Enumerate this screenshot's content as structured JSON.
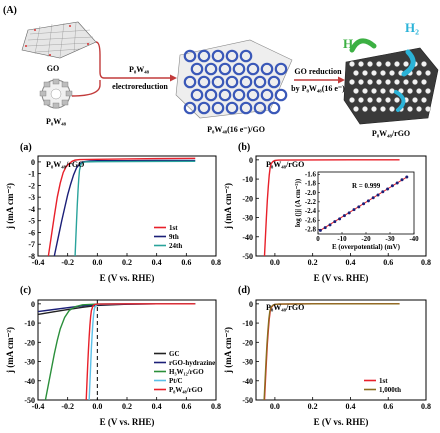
{
  "figure": {
    "label_A": "(A)",
    "scheme": {
      "go": "GO",
      "p8w48_reactant": "P₈W₄₈",
      "arrow1_top": "P₈W₄₈",
      "arrow1_bottom": "electroreduction",
      "intermediate": "P₈W₄₈(16 e⁻)/GO",
      "arrow2_top": "GO reduction",
      "arrow2_bottom": "by P₈W₄₈(16 e⁻)",
      "product": "P₈W₄₈/rGO",
      "h_label": "H",
      "h2_label": "H₂",
      "colors": {
        "go_sheet": "#888888",
        "pom": "#3a58b8",
        "arrow": "#c23b3b",
        "h": "#3cb043",
        "h2": "#2bb3d8"
      }
    }
  },
  "chart_data": [
    {
      "panel": "(a)",
      "type": "line",
      "inset_label": "P₈W₄₈/rGO",
      "xlabel": "E (V vs. RHE)",
      "ylabel": "j (mA cm⁻²)",
      "xlim": [
        -0.4,
        0.8
      ],
      "ylim": [
        -8,
        0.5
      ],
      "xticks": [
        -0.4,
        -0.2,
        0.0,
        0.2,
        0.4,
        0.6,
        0.8
      ],
      "yticks": [
        0,
        -1,
        -2,
        -3,
        -4,
        -5,
        -6,
        -7,
        -8
      ],
      "legend_position": "bottom-right",
      "series": [
        {
          "name": "1st",
          "color": "#e8202a",
          "x": [
            -0.33,
            -0.31,
            -0.29,
            -0.27,
            -0.25,
            -0.23,
            -0.21,
            -0.19,
            -0.17,
            -0.15,
            -0.12,
            0.0,
            0.2,
            0.4,
            0.66
          ],
          "y": [
            -8,
            -6.3,
            -4.6,
            -3.0,
            -1.8,
            -0.9,
            -0.4,
            -0.15,
            0.05,
            0.15,
            0.2,
            0.22,
            0.25,
            0.28,
            0.3
          ]
        },
        {
          "name": "9th",
          "color": "#1b1f78",
          "x": [
            -0.29,
            -0.26,
            -0.24,
            -0.22,
            -0.2,
            -0.18,
            -0.16,
            -0.14,
            -0.12,
            -0.1,
            -0.05,
            0.0,
            0.2,
            0.4,
            0.66
          ],
          "y": [
            -8,
            -6.2,
            -5.0,
            -3.9,
            -2.8,
            -1.9,
            -1.1,
            -0.5,
            -0.2,
            0.0,
            0.08,
            0.1,
            0.1,
            0.12,
            0.12
          ]
        },
        {
          "name": "24th",
          "color": "#2aa39c",
          "x": [
            -0.15,
            -0.145,
            -0.14,
            -0.135,
            -0.13,
            -0.125,
            -0.12,
            -0.11,
            -0.1,
            -0.08,
            0.0,
            0.2,
            0.4,
            0.66
          ],
          "y": [
            -8,
            -6.5,
            -5.0,
            -3.6,
            -2.4,
            -1.4,
            -0.7,
            -0.2,
            -0.05,
            0.0,
            0.02,
            0.03,
            0.04,
            0.05
          ]
        }
      ]
    },
    {
      "panel": "(b)",
      "type": "line",
      "inset_label": "P₈W₄₈/rGO",
      "xlabel": "E (V vs. RHE)",
      "ylabel": "j (mA cm⁻²)",
      "xlim": [
        -0.1,
        0.8
      ],
      "ylim": [
        -50,
        2
      ],
      "xticks": [
        0.0,
        0.2,
        0.4,
        0.6,
        0.8
      ],
      "yticks": [
        0,
        -10,
        -20,
        -30,
        -40,
        -50
      ],
      "series": [
        {
          "name": "P₈W₄₈/rGO",
          "color": "#e8202a",
          "x": [
            -0.055,
            -0.05,
            -0.045,
            -0.04,
            -0.035,
            -0.03,
            -0.025,
            -0.02,
            -0.01,
            0.0,
            0.02,
            0.2,
            0.4,
            0.66
          ],
          "y": [
            -50,
            -40,
            -30,
            -21,
            -14,
            -8,
            -4,
            -2,
            -0.8,
            -0.3,
            -0.1,
            -0.05,
            0,
            0
          ]
        }
      ],
      "inset": {
        "type": "scatter",
        "annotation": "R = 0.999",
        "xlabel": "E (overpotential) (mV)",
        "ylabel": "log (|j| (A cm⁻²))",
        "xlim": [
          0,
          -40
        ],
        "ylim": [
          -2.9,
          -1.55
        ],
        "xticks": [
          0,
          -10,
          -20,
          -30,
          -40
        ],
        "yticks": [
          -1.6,
          -1.8,
          -2.0,
          -2.2,
          -2.4,
          -2.6,
          -2.8
        ],
        "x": [
          -1,
          -3,
          -5,
          -7,
          -9,
          -11,
          -13,
          -15,
          -17,
          -19,
          -21,
          -23,
          -25,
          -27,
          -29,
          -31,
          -33,
          -35,
          -37
        ],
        "y": [
          -2.82,
          -2.76,
          -2.7,
          -2.63,
          -2.57,
          -2.5,
          -2.44,
          -2.37,
          -2.31,
          -2.24,
          -2.18,
          -2.11,
          -2.05,
          -1.98,
          -1.92,
          -1.85,
          -1.79,
          -1.72,
          -1.66
        ],
        "marker_color": "#1b1f78",
        "fit_color": "#e8202a"
      }
    },
    {
      "panel": "(c)",
      "type": "line",
      "xlabel": "E (V vs. RHE)",
      "ylabel": "j (mA cm⁻²)",
      "xlim": [
        -0.4,
        0.8
      ],
      "ylim": [
        -50,
        2
      ],
      "xticks": [
        -0.4,
        -0.2,
        0.0,
        0.2,
        0.4,
        0.6,
        0.8
      ],
      "yticks": [
        0,
        -10,
        -20,
        -30,
        -40,
        -50
      ],
      "vline_x": 0.0,
      "legend_position": "bottom-right",
      "series": [
        {
          "name": "GC",
          "color": "#222222",
          "x": [
            -0.4,
            -0.3,
            -0.2,
            -0.1,
            0.0,
            0.2,
            0.4,
            0.66
          ],
          "y": [
            -5.5,
            -4.2,
            -3.0,
            -1.8,
            -0.8,
            -0.2,
            0,
            0
          ]
        },
        {
          "name": "rGO-hydrazine",
          "color": "#1b1f78",
          "x": [
            -0.4,
            -0.3,
            -0.2,
            -0.1,
            0.0,
            0.2,
            0.4,
            0.66
          ],
          "y": [
            -4.0,
            -3.0,
            -2.0,
            -1.0,
            -0.4,
            -0.1,
            0,
            0
          ]
        },
        {
          "name": "H₃W₁₂/rGO",
          "color": "#2a8f3a",
          "x": [
            -0.35,
            -0.33,
            -0.31,
            -0.29,
            -0.27,
            -0.25,
            -0.22,
            -0.19,
            -0.15,
            -0.1,
            0.0,
            0.2,
            0.4,
            0.66
          ],
          "y": [
            -50,
            -42,
            -34,
            -26,
            -19,
            -13,
            -7,
            -3.5,
            -1.5,
            -0.5,
            -0.1,
            0,
            0,
            0
          ]
        },
        {
          "name": "Pt/C",
          "color": "#5bc0e8",
          "x": [
            -0.055,
            -0.05,
            -0.045,
            -0.04,
            -0.035,
            -0.03,
            -0.025,
            -0.02,
            -0.01,
            0.0,
            0.02,
            0.2,
            0.4,
            0.66
          ],
          "y": [
            -50,
            -41,
            -32,
            -23,
            -16,
            -10,
            -5.5,
            -2.5,
            -0.8,
            -0.3,
            -0.1,
            0,
            0,
            0
          ]
        },
        {
          "name": "P₈W₄₈/rGO",
          "color": "#e8202a",
          "x": [
            -0.075,
            -0.07,
            -0.065,
            -0.06,
            -0.055,
            -0.05,
            -0.045,
            -0.04,
            -0.03,
            -0.02,
            0.0,
            0.2,
            0.4,
            0.66
          ],
          "y": [
            -50,
            -41,
            -32,
            -24,
            -17,
            -11,
            -6.5,
            -3.5,
            -1.2,
            -0.4,
            -0.1,
            0,
            0,
            0
          ]
        }
      ]
    },
    {
      "panel": "(d)",
      "type": "line",
      "inset_label": "P₈W₄₈/rGO",
      "xlabel": "E (V vs. RHE)",
      "ylabel": "j (mA cm⁻²)",
      "xlim": [
        -0.1,
        0.8
      ],
      "ylim": [
        -50,
        2
      ],
      "xticks": [
        0.0,
        0.2,
        0.4,
        0.6,
        0.8
      ],
      "yticks": [
        0,
        -10,
        -20,
        -30,
        -40,
        -50
      ],
      "legend_position": "bottom-right",
      "series": [
        {
          "name": "1st",
          "color": "#e8202a",
          "x": [
            -0.055,
            -0.05,
            -0.045,
            -0.04,
            -0.035,
            -0.03,
            -0.025,
            -0.02,
            -0.01,
            0.0,
            0.02,
            0.2,
            0.4,
            0.66
          ],
          "y": [
            -50,
            -40,
            -30,
            -21,
            -14,
            -8,
            -4,
            -2,
            -0.8,
            -0.3,
            -0.1,
            0,
            0,
            0
          ]
        },
        {
          "name": "1,000th",
          "color": "#8a6d1f",
          "x": [
            -0.057,
            -0.052,
            -0.047,
            -0.042,
            -0.037,
            -0.032,
            -0.027,
            -0.022,
            -0.012,
            -0.002,
            0.02,
            0.2,
            0.4,
            0.66
          ],
          "y": [
            -50,
            -40,
            -30,
            -21,
            -14,
            -8,
            -4,
            -2,
            -0.8,
            -0.3,
            -0.1,
            0,
            0,
            0
          ]
        }
      ]
    }
  ]
}
